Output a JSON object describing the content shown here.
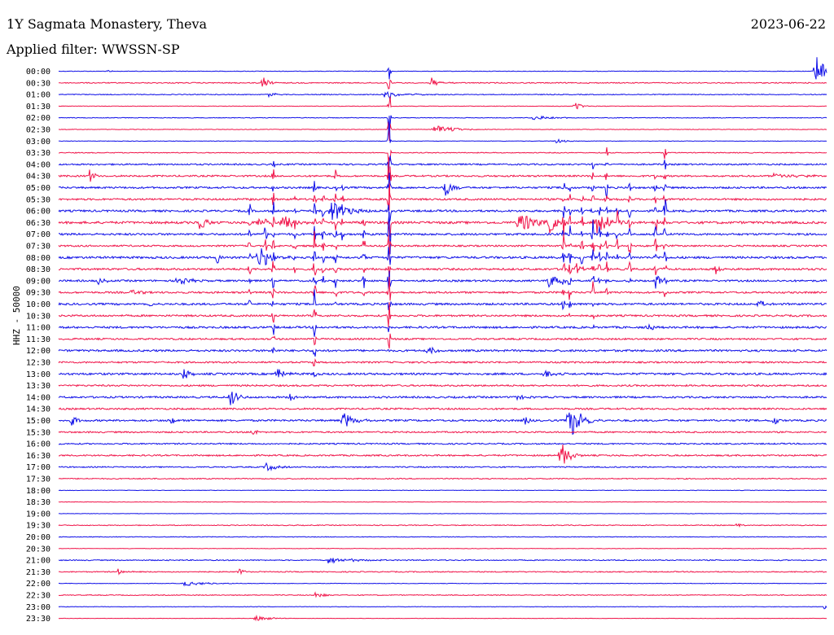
{
  "header": {
    "station": "1Y Sagmata Monastery, Theva",
    "date": "2023-06-22",
    "filter": "Applied filter: WWSSN-SP"
  },
  "chart_data": {
    "type": "line",
    "title": "1Y Sagmata Monastery, Theva",
    "ylabel": "HHZ - 50000",
    "colors": [
      "#1010e8",
      "#f0154a"
    ],
    "row_labels": [
      "00:00",
      "00:30",
      "01:00",
      "01:30",
      "02:00",
      "02:30",
      "03:00",
      "03:30",
      "04:00",
      "04:30",
      "05:00",
      "05:30",
      "06:00",
      "06:30",
      "07:00",
      "07:30",
      "08:00",
      "08:30",
      "09:00",
      "09:30",
      "10:00",
      "10:30",
      "11:00",
      "11:30",
      "12:00",
      "12:30",
      "13:00",
      "13:30",
      "14:00",
      "14:30",
      "15:00",
      "15:30",
      "16:00",
      "16:30",
      "17:00",
      "17:30",
      "18:00",
      "18:30",
      "19:00",
      "19:30",
      "20:00",
      "20:30",
      "21:00",
      "21:30",
      "22:00",
      "22:30",
      "23:00",
      "23:30"
    ],
    "noise_level": [
      0.3,
      0.6,
      0.5,
      0.3,
      0.4,
      0.3,
      0.3,
      0.5,
      0.9,
      1.0,
      1.1,
      1.1,
      1.2,
      1.4,
      1.2,
      1.0,
      1.3,
      1.2,
      1.1,
      1.1,
      1.2,
      1.1,
      1.2,
      1.0,
      1.2,
      1.0,
      1.2,
      1.0,
      1.1,
      1.0,
      1.1,
      0.9,
      0.8,
      0.9,
      0.7,
      0.6,
      0.3,
      0.3,
      0.2,
      0.5,
      0.4,
      0.3,
      0.6,
      0.6,
      0.3,
      0.5,
      0.3,
      0.2
    ],
    "events": [
      {
        "row": 0,
        "t": 0.0645,
        "amp": 2,
        "dur": 0.007
      },
      {
        "row": 0,
        "t": 0.985,
        "amp": 25,
        "dur": 0.012
      },
      {
        "row": 1,
        "t": 0.265,
        "amp": 9,
        "dur": 0.008
      },
      {
        "row": 1,
        "t": 0.4855,
        "amp": 6,
        "dur": 0.012
      },
      {
        "row": 2,
        "t": 0.2735,
        "amp": 4,
        "dur": 0.008
      },
      {
        "row": 2,
        "t": 0.4215,
        "amp": 4,
        "dur": 0.035
      },
      {
        "row": 3,
        "t": 0.6715,
        "amp": 6,
        "dur": 0.01
      },
      {
        "row": 4,
        "t": 0.617,
        "amp": 3,
        "dur": 0.03
      },
      {
        "row": 5,
        "t": 0.487,
        "amp": 6,
        "dur": 0.03
      },
      {
        "row": 6,
        "t": 0.6475,
        "amp": 3,
        "dur": 0.012
      },
      {
        "row": 9,
        "t": 0.04,
        "amp": 9,
        "dur": 0.008
      },
      {
        "row": 9,
        "t": 0.93,
        "amp": 3,
        "dur": 0.04
      },
      {
        "row": 10,
        "t": 0.5025,
        "amp": 14,
        "dur": 0.01
      },
      {
        "row": 12,
        "t": 0.3525,
        "amp": 16,
        "dur": 0.025
      },
      {
        "row": 13,
        "t": 0.1825,
        "amp": 14,
        "dur": 0.01
      },
      {
        "row": 13,
        "t": 0.258,
        "amp": 10,
        "dur": 0.006
      },
      {
        "row": 13,
        "t": 0.29,
        "amp": 14,
        "dur": 0.016
      },
      {
        "row": 13,
        "t": 0.599,
        "amp": 18,
        "dur": 0.02
      },
      {
        "row": 13,
        "t": 0.639,
        "amp": 14,
        "dur": 0.013
      },
      {
        "row": 13,
        "t": 0.7,
        "amp": 18,
        "dur": 0.016
      },
      {
        "row": 16,
        "t": 0.205,
        "amp": 10,
        "dur": 0.008
      },
      {
        "row": 16,
        "t": 0.259,
        "amp": 14,
        "dur": 0.02
      },
      {
        "row": 17,
        "t": 0.8545,
        "amp": 8,
        "dur": 0.008
      },
      {
        "row": 17,
        "t": 0.6735,
        "amp": 9,
        "dur": 0.008
      },
      {
        "row": 18,
        "t": 0.049,
        "amp": 5,
        "dur": 0.01
      },
      {
        "row": 18,
        "t": 0.1545,
        "amp": 8,
        "dur": 0.015
      },
      {
        "row": 18,
        "t": 0.7795,
        "amp": 8,
        "dur": 0.008
      },
      {
        "row": 18,
        "t": 0.6365,
        "amp": 10,
        "dur": 0.02
      },
      {
        "row": 19,
        "t": 0.0945,
        "amp": 6,
        "dur": 0.01
      },
      {
        "row": 20,
        "t": 0.117,
        "amp": 4,
        "dur": 0.008
      },
      {
        "row": 20,
        "t": 0.9115,
        "amp": 6,
        "dur": 0.008
      },
      {
        "row": 22,
        "t": 0.766,
        "amp": 4,
        "dur": 0.012
      },
      {
        "row": 24,
        "t": 0.4795,
        "amp": 10,
        "dur": 0.008
      },
      {
        "row": 26,
        "t": 0.1615,
        "amp": 9,
        "dur": 0.012
      },
      {
        "row": 26,
        "t": 0.2835,
        "amp": 10,
        "dur": 0.012
      },
      {
        "row": 26,
        "t": 0.6325,
        "amp": 6,
        "dur": 0.012
      },
      {
        "row": 28,
        "t": 0.223,
        "amp": 14,
        "dur": 0.01
      },
      {
        "row": 28,
        "t": 0.3005,
        "amp": 7,
        "dur": 0.008
      },
      {
        "row": 28,
        "t": 0.5915,
        "amp": 4,
        "dur": 0.015
      },
      {
        "row": 30,
        "t": 0.0165,
        "amp": 10,
        "dur": 0.006
      },
      {
        "row": 30,
        "t": 0.1445,
        "amp": 10,
        "dur": 0.006
      },
      {
        "row": 30,
        "t": 0.3695,
        "amp": 12,
        "dur": 0.015
      },
      {
        "row": 30,
        "t": 0.6075,
        "amp": 10,
        "dur": 0.006
      },
      {
        "row": 30,
        "t": 0.6635,
        "amp": 26,
        "dur": 0.018
      },
      {
        "row": 30,
        "t": 0.9305,
        "amp": 10,
        "dur": 0.006
      },
      {
        "row": 31,
        "t": 0.2515,
        "amp": 8,
        "dur": 0.006
      },
      {
        "row": 33,
        "t": 0.6525,
        "amp": 20,
        "dur": 0.012
      },
      {
        "row": 34,
        "t": 0.2685,
        "amp": 6,
        "dur": 0.015
      },
      {
        "row": 39,
        "t": 0.8835,
        "amp": 4,
        "dur": 0.006
      },
      {
        "row": 42,
        "t": 0.3505,
        "amp": 4,
        "dur": 0.035
      },
      {
        "row": 43,
        "t": 0.0765,
        "amp": 4,
        "dur": 0.01
      },
      {
        "row": 43,
        "t": 0.2345,
        "amp": 4,
        "dur": 0.008
      },
      {
        "row": 44,
        "t": 0.1625,
        "amp": 3,
        "dur": 0.035
      },
      {
        "row": 45,
        "t": 0.3335,
        "amp": 6,
        "dur": 0.01
      },
      {
        "row": 46,
        "t": 0.9965,
        "amp": 3,
        "dur": 0.008
      },
      {
        "row": 47,
        "t": 0.2565,
        "amp": 4,
        "dur": 0.02
      }
    ],
    "bursts": [
      {
        "t": 0.249,
        "row_start": 11,
        "row_end": 20,
        "amp": 12
      },
      {
        "t": 0.2695,
        "row_start": 13,
        "row_end": 16,
        "amp": 18
      },
      {
        "t": 0.2795,
        "row_start": 8,
        "row_end": 24,
        "amp": 16
      },
      {
        "t": 0.3075,
        "row_start": 11,
        "row_end": 17,
        "amp": 12
      },
      {
        "t": 0.3335,
        "row_start": 10,
        "row_end": 26,
        "amp": 22
      },
      {
        "t": 0.3445,
        "row_start": 11,
        "row_end": 18,
        "amp": 14
      },
      {
        "t": 0.3605,
        "row_start": 9,
        "row_end": 20,
        "amp": 14
      },
      {
        "t": 0.3695,
        "row_start": 10,
        "row_end": 14,
        "amp": 12
      },
      {
        "t": 0.3975,
        "row_start": 13,
        "row_end": 19,
        "amp": 14
      },
      {
        "t": 0.4305,
        "row_start": 0,
        "row_end": 23,
        "amp": 40
      },
      {
        "t": 0.6575,
        "row_start": 10,
        "row_end": 20,
        "amp": 16
      },
      {
        "t": 0.6655,
        "row_start": 10,
        "row_end": 21,
        "amp": 18
      },
      {
        "t": 0.6815,
        "row_start": 11,
        "row_end": 17,
        "amp": 14
      },
      {
        "t": 0.6955,
        "row_start": 8,
        "row_end": 22,
        "amp": 16
      },
      {
        "t": 0.7045,
        "row_start": 12,
        "row_end": 18,
        "amp": 12
      },
      {
        "t": 0.7135,
        "row_start": 7,
        "row_end": 19,
        "amp": 14
      },
      {
        "t": 0.7275,
        "row_start": 11,
        "row_end": 16,
        "amp": 12
      },
      {
        "t": 0.7435,
        "row_start": 10,
        "row_end": 18,
        "amp": 14
      },
      {
        "t": 0.7775,
        "row_start": 9,
        "row_end": 18,
        "amp": 14
      },
      {
        "t": 0.7895,
        "row_start": 7,
        "row_end": 19,
        "amp": 16
      }
    ]
  }
}
